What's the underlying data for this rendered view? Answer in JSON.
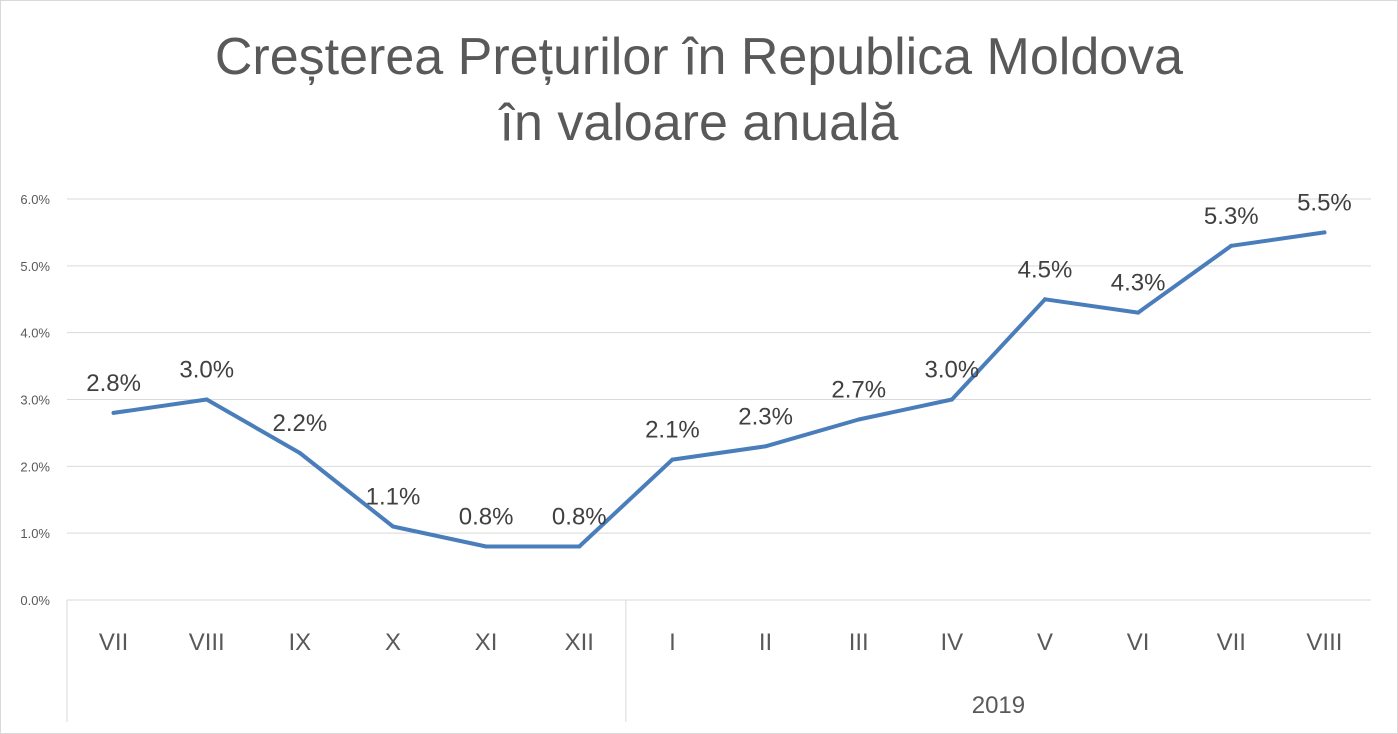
{
  "chart_data": {
    "type": "line",
    "title_line1": "Creșterea Prețurilor în Republica Moldova",
    "title_line2": "în valoare anuală",
    "categories": [
      "VII",
      "VIII",
      "IX",
      "X",
      "XI",
      "XII",
      "I",
      "II",
      "III",
      "IV",
      "V",
      "VI",
      "VII",
      "VIII"
    ],
    "group_labels": [
      "",
      "2019"
    ],
    "series": [
      {
        "values": [
          2.8,
          3.0,
          2.2,
          1.1,
          0.8,
          0.8,
          2.1,
          2.3,
          2.7,
          3.0,
          4.5,
          4.3,
          5.3,
          5.5
        ],
        "data_labels": [
          "2.8%",
          "3.0%",
          "2.2%",
          "1.1%",
          "0.8%",
          "0.8%",
          "2.1%",
          "2.3%",
          "2.7%",
          "3.0%",
          "4.5%",
          "4.3%",
          "5.3%",
          "5.5%"
        ],
        "color": "#4a7ebb"
      }
    ],
    "ylim": [
      0,
      6
    ],
    "yticks": [
      "0.0%",
      "1.0%",
      "2.0%",
      "3.0%",
      "4.0%",
      "5.0%",
      "6.0%"
    ],
    "grid": true,
    "legend": "none",
    "gridline_color": "#d9d9d9",
    "text_color": "#595959"
  }
}
